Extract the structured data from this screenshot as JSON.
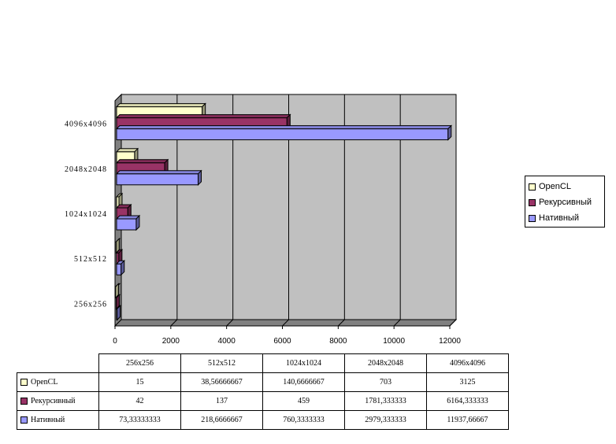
{
  "chart_data": {
    "type": "bar",
    "orientation": "horizontal",
    "categories": [
      "256x256",
      "512x512",
      "1024x1024",
      "2048x2048",
      "4096x4096"
    ],
    "x_ticks": [
      "0",
      "2000",
      "4000",
      "6000",
      "8000",
      "10000",
      "12000"
    ],
    "xlim": [
      0,
      12000
    ],
    "grid": true,
    "legend_position": "right",
    "series": [
      {
        "name": "OpenCL",
        "color": "#ffffcc",
        "values": [
          15,
          38.56666667,
          140.6666667,
          703,
          3125
        ],
        "labels": [
          "15",
          "38,56666667",
          "140,6666667",
          "703",
          "3125"
        ]
      },
      {
        "name": "Рекурсивный",
        "color": "#993366",
        "values": [
          42,
          137,
          459,
          1781.333333,
          6164.333333
        ],
        "labels": [
          "42",
          "137",
          "459",
          "1781,333333",
          "6164,333333"
        ]
      },
      {
        "name": "Нативный",
        "color": "#9999ff",
        "values": [
          73.33333333,
          218.6666667,
          760.3333333,
          2979.333333,
          11937.66667
        ],
        "labels": [
          "73,33333333",
          "218,6666667",
          "760,3333333",
          "2979,333333",
          "11937,66667"
        ]
      }
    ]
  }
}
